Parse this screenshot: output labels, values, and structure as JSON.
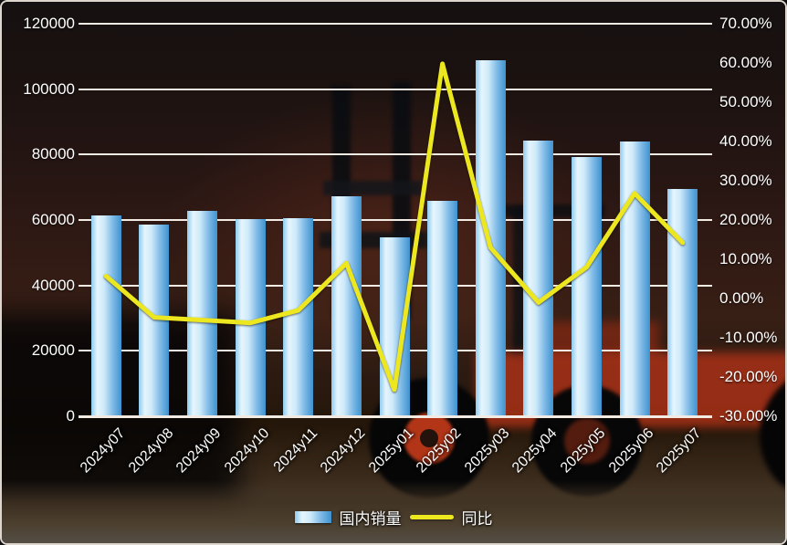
{
  "chart_data": {
    "type": "bar",
    "subtype": "combo-bar-line",
    "categories": [
      "2024y07",
      "2024y08",
      "2024y09",
      "2024y10",
      "2024y11",
      "2024y12",
      "2025y01",
      "2025y02",
      "2025y03",
      "2025y04",
      "2025y05",
      "2025y06",
      "2025y07"
    ],
    "series": [
      {
        "name": "国内销量",
        "type": "bar",
        "axis": "left",
        "values": [
          61500,
          58700,
          62800,
          60300,
          60600,
          67300,
          54700,
          65900,
          108800,
          84300,
          79300,
          84000,
          69500
        ]
      },
      {
        "name": "同比",
        "type": "line",
        "axis": "right",
        "values": [
          5.7,
          -4.8,
          -5.5,
          -6.2,
          -3.0,
          9.0,
          -23.2,
          59.8,
          13.0,
          -1.0,
          8.0,
          26.8,
          14.2
        ]
      }
    ],
    "left_axis": {
      "min": 0,
      "max": 120000,
      "step": 20000,
      "labels": [
        "0",
        "20000",
        "40000",
        "60000",
        "80000",
        "100000",
        "120000"
      ]
    },
    "right_axis": {
      "min": -30,
      "max": 70,
      "step": 10,
      "labels": [
        "-30.00%",
        "-20.00%",
        "-10.00%",
        "0.00%",
        "10.00%",
        "20.00%",
        "30.00%",
        "40.00%",
        "50.00%",
        "60.00%",
        "70.00%"
      ]
    },
    "grid": true,
    "legend_position": "bottom",
    "colors": {
      "bar_gradient": [
        "#8ecbee",
        "#e6f5fd",
        "#cfeafa",
        "#7db9e6",
        "#3e92cf"
      ],
      "line": "#ece71e",
      "grid": "#f2ebe3",
      "text": "#ffffff"
    }
  }
}
